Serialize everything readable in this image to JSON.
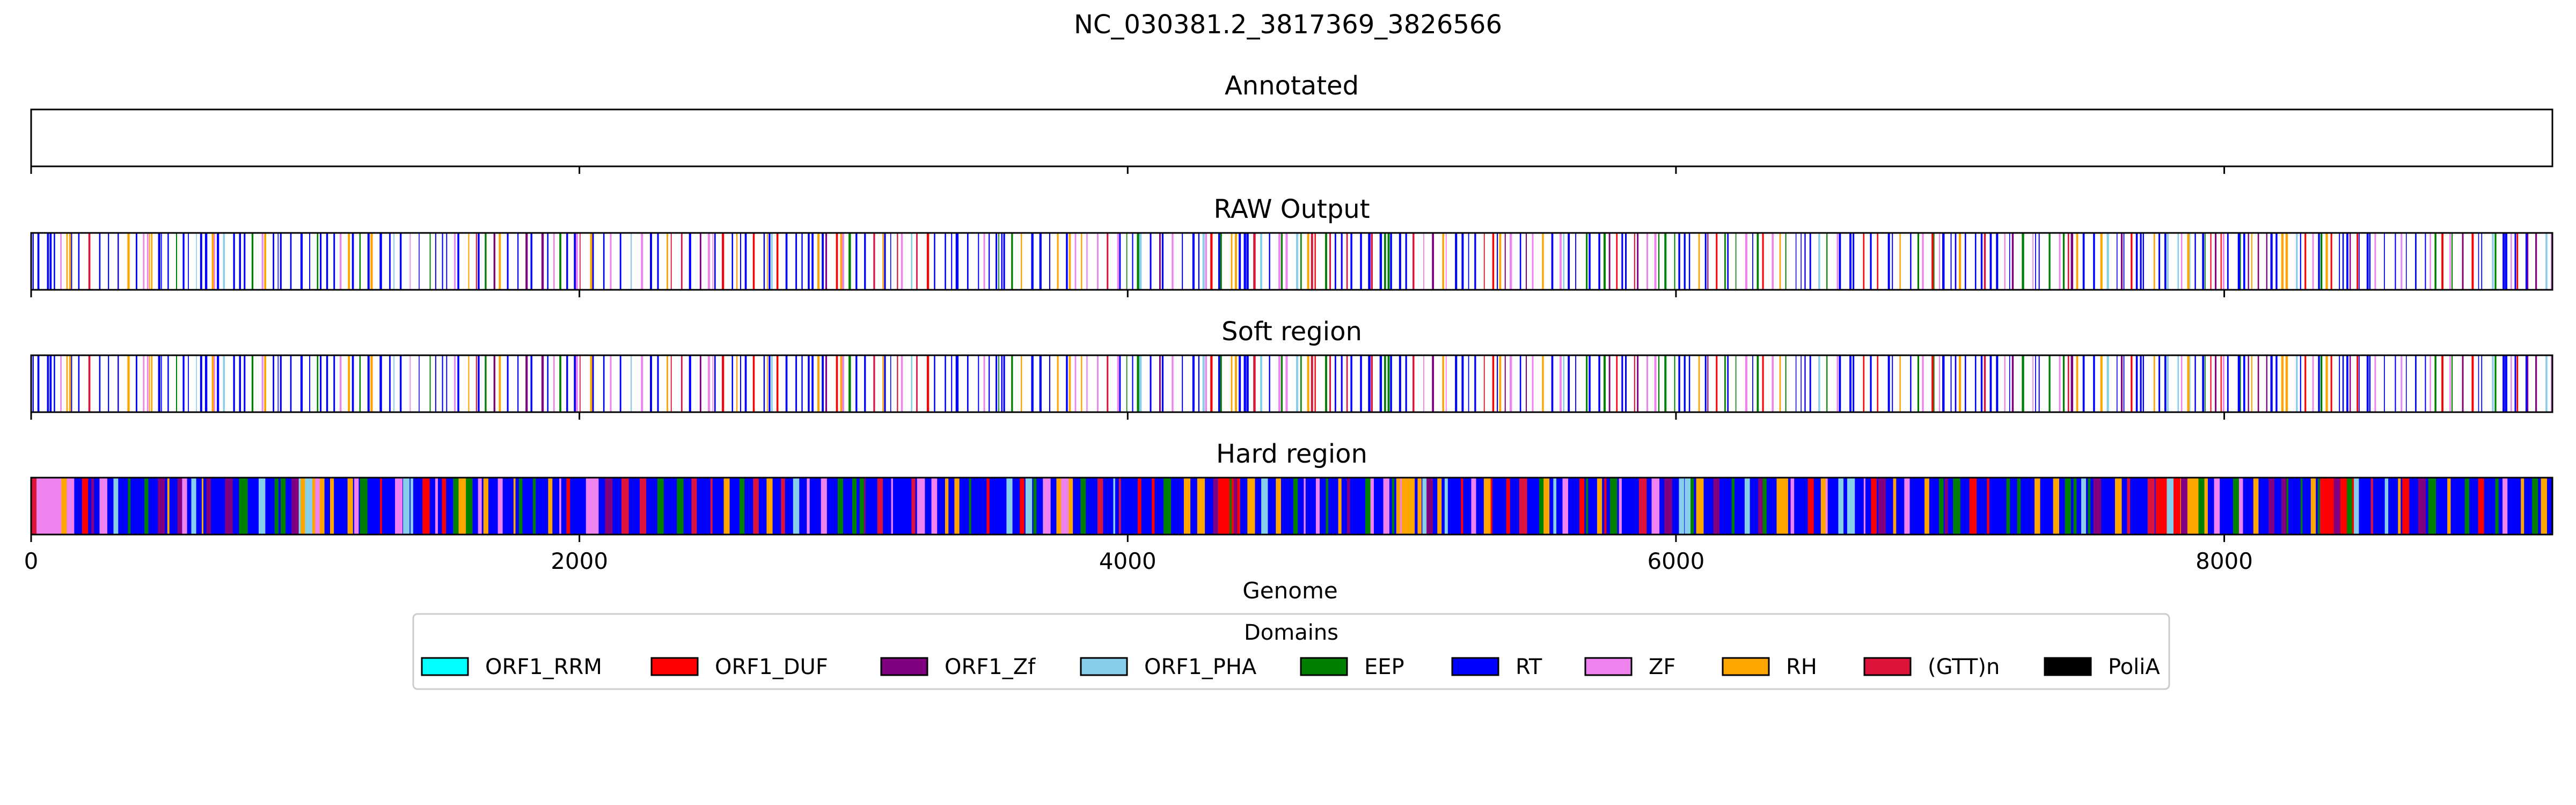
{
  "chart_data": {
    "type": "track",
    "title": "NC_030381.2_3817369_3826566",
    "xlabel": "Genome",
    "xlim": [
      0,
      9197
    ],
    "xticks": [
      0,
      2000,
      4000,
      6000,
      8000
    ],
    "xtick_labels": [
      "0",
      "2000",
      "4000",
      "6000",
      "8000"
    ],
    "tracks": [
      {
        "title": "Annotated",
        "segments": []
      },
      {
        "title": "RAW Output",
        "mode": "sparse",
        "seed": 11
      },
      {
        "title": "Soft region",
        "mode": "sparse",
        "seed": 11
      },
      {
        "title": "Hard region",
        "mode": "dense",
        "seed": 29
      }
    ],
    "legend": {
      "title": "Domains",
      "placement": "lower center",
      "entries": [
        {
          "label": "ORF1_RRM",
          "color": "#00ffff"
        },
        {
          "label": "ORF1_DUF",
          "color": "#ff0000"
        },
        {
          "label": "ORF1_Zf",
          "color": "#800080"
        },
        {
          "label": "ORF1_PHA",
          "color": "#87ceeb"
        },
        {
          "label": "EEP",
          "color": "#008000"
        },
        {
          "label": "RT",
          "color": "#0000ff"
        },
        {
          "label": "ZF",
          "color": "#ee82ee"
        },
        {
          "label": "RH",
          "color": "#ffa500"
        },
        {
          "label": "(GTT)n",
          "color": "#dc143c"
        },
        {
          "label": "PoliA",
          "color": "#000000"
        }
      ]
    },
    "hard_region_blocks": [
      {
        "start": 0,
        "end": 20,
        "domain": "(GTT)n"
      },
      {
        "start": 20,
        "end": 110,
        "domain": "ZF"
      },
      {
        "start": 110,
        "end": 130,
        "domain": "RH"
      },
      {
        "start": 130,
        "end": 760,
        "domain": "RT"
      },
      {
        "start": 760,
        "end": 790,
        "domain": "EEP"
      },
      {
        "start": 790,
        "end": 980,
        "domain": "RT"
      },
      {
        "start": 980,
        "end": 1070,
        "domain": "RH"
      },
      {
        "start": 1070,
        "end": 1540,
        "domain": "RT"
      },
      {
        "start": 1540,
        "end": 1610,
        "domain": "EEP"
      },
      {
        "start": 1610,
        "end": 2030,
        "domain": "RT"
      },
      {
        "start": 2030,
        "end": 2070,
        "domain": "ZF"
      },
      {
        "start": 2070,
        "end": 3740,
        "domain": "RT"
      },
      {
        "start": 3740,
        "end": 3800,
        "domain": "RH"
      },
      {
        "start": 3800,
        "end": 4330,
        "domain": "RT"
      },
      {
        "start": 4330,
        "end": 4410,
        "domain": "ORF1_DUF"
      },
      {
        "start": 4410,
        "end": 4980,
        "domain": "RT"
      },
      {
        "start": 4980,
        "end": 5030,
        "domain": "RH"
      },
      {
        "start": 5030,
        "end": 7750,
        "domain": "RT"
      },
      {
        "start": 7750,
        "end": 7840,
        "domain": "ORF1_DUF"
      },
      {
        "start": 7840,
        "end": 7940,
        "domain": "RH"
      },
      {
        "start": 7940,
        "end": 8350,
        "domain": "RT"
      },
      {
        "start": 8350,
        "end": 8480,
        "domain": "ORF1_DUF"
      },
      {
        "start": 8480,
        "end": 9197,
        "domain": "RT"
      }
    ]
  }
}
